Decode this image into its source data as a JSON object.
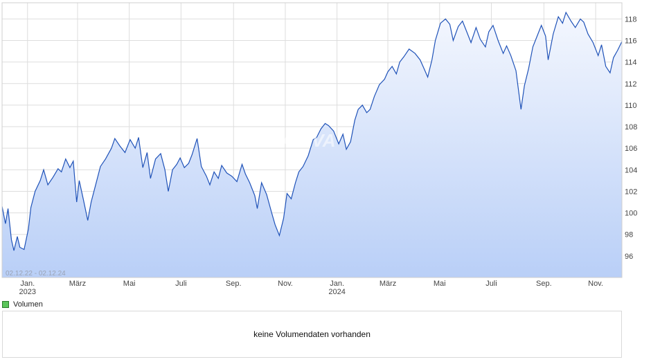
{
  "chart_data": {
    "type": "area",
    "date_range_label": "02.12.22 - 02.12.24",
    "watermark": "ARIVA",
    "ylim": [
      94,
      119.5
    ],
    "y_ticks": [
      96,
      98,
      100,
      102,
      104,
      106,
      108,
      110,
      112,
      114,
      116,
      118
    ],
    "x_ticks": [
      {
        "date": "2023-01-01",
        "label": "Jan.",
        "year": "2023"
      },
      {
        "date": "2023-03-01",
        "label": "März",
        "year": ""
      },
      {
        "date": "2023-05-01",
        "label": "Mai",
        "year": ""
      },
      {
        "date": "2023-07-01",
        "label": "Juli",
        "year": ""
      },
      {
        "date": "2023-09-01",
        "label": "Sep.",
        "year": ""
      },
      {
        "date": "2023-11-01",
        "label": "Nov.",
        "year": ""
      },
      {
        "date": "2024-01-01",
        "label": "Jan.",
        "year": "2024"
      },
      {
        "date": "2024-03-01",
        "label": "März",
        "year": ""
      },
      {
        "date": "2024-05-01",
        "label": "Mai",
        "year": ""
      },
      {
        "date": "2024-07-01",
        "label": "Juli",
        "year": ""
      },
      {
        "date": "2024-09-01",
        "label": "Sep.",
        "year": ""
      },
      {
        "date": "2024-11-01",
        "label": "Nov.",
        "year": ""
      }
    ],
    "grid": true,
    "colors": {
      "line": "#1f52b8",
      "fill_top": "#f4f7fe",
      "fill_bottom": "#b9cff7",
      "grid": "#dddddd"
    },
    "series": [
      {
        "points": [
          [
            "2022-12-02",
            100.6
          ],
          [
            "2022-12-06",
            99.0
          ],
          [
            "2022-12-09",
            100.4
          ],
          [
            "2022-12-13",
            97.5
          ],
          [
            "2022-12-16",
            96.5
          ],
          [
            "2022-12-20",
            97.8
          ],
          [
            "2022-12-23",
            96.8
          ],
          [
            "2022-12-28",
            96.6
          ],
          [
            "2023-01-02",
            98.5
          ],
          [
            "2023-01-05",
            100.5
          ],
          [
            "2023-01-10",
            102.0
          ],
          [
            "2023-01-16",
            103.0
          ],
          [
            "2023-01-20",
            104.0
          ],
          [
            "2023-01-25",
            102.6
          ],
          [
            "2023-01-31",
            103.3
          ],
          [
            "2023-02-06",
            104.1
          ],
          [
            "2023-02-10",
            103.8
          ],
          [
            "2023-02-15",
            105.0
          ],
          [
            "2023-02-20",
            104.2
          ],
          [
            "2023-02-24",
            104.8
          ],
          [
            "2023-02-28",
            101.0
          ],
          [
            "2023-03-03",
            103.0
          ],
          [
            "2023-03-08",
            101.2
          ],
          [
            "2023-03-13",
            99.3
          ],
          [
            "2023-03-17",
            101.0
          ],
          [
            "2023-03-22",
            102.5
          ],
          [
            "2023-03-28",
            104.3
          ],
          [
            "2023-04-03",
            105.0
          ],
          [
            "2023-04-10",
            106.0
          ],
          [
            "2023-04-14",
            106.9
          ],
          [
            "2023-04-20",
            106.2
          ],
          [
            "2023-04-26",
            105.6
          ],
          [
            "2023-05-02",
            106.8
          ],
          [
            "2023-05-08",
            106.0
          ],
          [
            "2023-05-12",
            107.0
          ],
          [
            "2023-05-17",
            104.2
          ],
          [
            "2023-05-22",
            105.6
          ],
          [
            "2023-05-26",
            103.2
          ],
          [
            "2023-06-01",
            105.0
          ],
          [
            "2023-06-07",
            105.5
          ],
          [
            "2023-06-12",
            104.0
          ],
          [
            "2023-06-16",
            102.0
          ],
          [
            "2023-06-21",
            104.0
          ],
          [
            "2023-06-26",
            104.5
          ],
          [
            "2023-06-30",
            105.1
          ],
          [
            "2023-07-05",
            104.2
          ],
          [
            "2023-07-10",
            104.6
          ],
          [
            "2023-07-14",
            105.4
          ],
          [
            "2023-07-20",
            106.9
          ],
          [
            "2023-07-25",
            104.3
          ],
          [
            "2023-07-31",
            103.4
          ],
          [
            "2023-08-04",
            102.6
          ],
          [
            "2023-08-09",
            103.8
          ],
          [
            "2023-08-14",
            103.2
          ],
          [
            "2023-08-18",
            104.4
          ],
          [
            "2023-08-24",
            103.7
          ],
          [
            "2023-08-30",
            103.4
          ],
          [
            "2023-09-05",
            102.9
          ],
          [
            "2023-09-11",
            104.5
          ],
          [
            "2023-09-15",
            103.6
          ],
          [
            "2023-09-20",
            102.8
          ],
          [
            "2023-09-26",
            101.6
          ],
          [
            "2023-09-29",
            100.4
          ],
          [
            "2023-10-04",
            102.8
          ],
          [
            "2023-10-10",
            101.7
          ],
          [
            "2023-10-16",
            100.0
          ],
          [
            "2023-10-20",
            98.9
          ],
          [
            "2023-10-25",
            97.9
          ],
          [
            "2023-10-30",
            99.5
          ],
          [
            "2023-11-03",
            101.8
          ],
          [
            "2023-11-08",
            101.3
          ],
          [
            "2023-11-13",
            102.8
          ],
          [
            "2023-11-17",
            103.8
          ],
          [
            "2023-11-22",
            104.3
          ],
          [
            "2023-11-28",
            105.3
          ],
          [
            "2023-12-04",
            106.8
          ],
          [
            "2023-12-08",
            107.0
          ],
          [
            "2023-12-13",
            107.8
          ],
          [
            "2023-12-18",
            108.3
          ],
          [
            "2023-12-22",
            108.1
          ],
          [
            "2023-12-28",
            107.6
          ],
          [
            "2024-01-03",
            106.4
          ],
          [
            "2024-01-08",
            107.3
          ],
          [
            "2024-01-12",
            105.9
          ],
          [
            "2024-01-17",
            106.6
          ],
          [
            "2024-01-22",
            108.6
          ],
          [
            "2024-01-26",
            109.6
          ],
          [
            "2024-01-31",
            110.0
          ],
          [
            "2024-02-05",
            109.3
          ],
          [
            "2024-02-09",
            109.6
          ],
          [
            "2024-02-14",
            110.8
          ],
          [
            "2024-02-20",
            111.9
          ],
          [
            "2024-02-26",
            112.4
          ],
          [
            "2024-03-01",
            113.1
          ],
          [
            "2024-03-06",
            113.6
          ],
          [
            "2024-03-11",
            112.9
          ],
          [
            "2024-03-15",
            114.0
          ],
          [
            "2024-03-20",
            114.5
          ],
          [
            "2024-03-26",
            115.2
          ],
          [
            "2024-04-02",
            114.8
          ],
          [
            "2024-04-08",
            114.2
          ],
          [
            "2024-04-12",
            113.5
          ],
          [
            "2024-04-17",
            112.6
          ],
          [
            "2024-04-22",
            114.2
          ],
          [
            "2024-04-26",
            116.0
          ],
          [
            "2024-05-02",
            117.6
          ],
          [
            "2024-05-08",
            118.0
          ],
          [
            "2024-05-13",
            117.5
          ],
          [
            "2024-05-17",
            116.0
          ],
          [
            "2024-05-23",
            117.3
          ],
          [
            "2024-05-28",
            117.8
          ],
          [
            "2024-06-03",
            116.6
          ],
          [
            "2024-06-07",
            115.8
          ],
          [
            "2024-06-13",
            117.2
          ],
          [
            "2024-06-18",
            116.1
          ],
          [
            "2024-06-24",
            115.4
          ],
          [
            "2024-06-28",
            116.8
          ],
          [
            "2024-07-03",
            117.4
          ],
          [
            "2024-07-09",
            116.0
          ],
          [
            "2024-07-15",
            114.8
          ],
          [
            "2024-07-19",
            115.5
          ],
          [
            "2024-07-24",
            114.6
          ],
          [
            "2024-07-30",
            113.2
          ],
          [
            "2024-08-05",
            109.6
          ],
          [
            "2024-08-09",
            111.8
          ],
          [
            "2024-08-14",
            113.4
          ],
          [
            "2024-08-19",
            115.4
          ],
          [
            "2024-08-23",
            116.2
          ],
          [
            "2024-08-29",
            117.4
          ],
          [
            "2024-09-03",
            116.4
          ],
          [
            "2024-09-06",
            114.2
          ],
          [
            "2024-09-12",
            116.6
          ],
          [
            "2024-09-18",
            118.2
          ],
          [
            "2024-09-23",
            117.6
          ],
          [
            "2024-09-27",
            118.6
          ],
          [
            "2024-10-03",
            117.8
          ],
          [
            "2024-10-08",
            117.2
          ],
          [
            "2024-10-14",
            118.0
          ],
          [
            "2024-10-18",
            117.7
          ],
          [
            "2024-10-23",
            116.6
          ],
          [
            "2024-10-29",
            115.8
          ],
          [
            "2024-11-04",
            114.6
          ],
          [
            "2024-11-08",
            115.6
          ],
          [
            "2024-11-13",
            113.6
          ],
          [
            "2024-11-18",
            113.0
          ],
          [
            "2024-11-22",
            114.4
          ],
          [
            "2024-11-27",
            115.1
          ],
          [
            "2024-12-02",
            115.9
          ]
        ]
      }
    ]
  },
  "legend": {
    "volume_label": "Volumen",
    "volume_color": "#5cc65c"
  },
  "volume_panel": {
    "message": "keine Volumendaten vorhanden"
  }
}
